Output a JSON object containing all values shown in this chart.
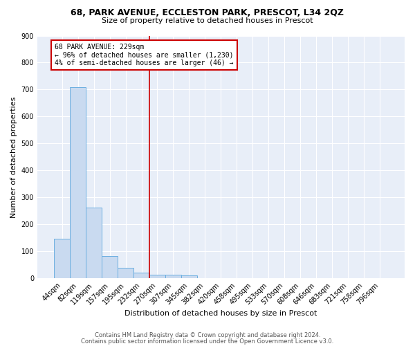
{
  "title_line1": "68, PARK AVENUE, ECCLESTON PARK, PRESCOT, L34 2QZ",
  "title_line2": "Size of property relative to detached houses in Prescot",
  "xlabel": "Distribution of detached houses by size in Prescot",
  "ylabel": "Number of detached properties",
  "bar_labels": [
    "44sqm",
    "82sqm",
    "119sqm",
    "157sqm",
    "195sqm",
    "232sqm",
    "270sqm",
    "307sqm",
    "345sqm",
    "382sqm",
    "420sqm",
    "458sqm",
    "495sqm",
    "533sqm",
    "570sqm",
    "608sqm",
    "646sqm",
    "683sqm",
    "721sqm",
    "758sqm",
    "796sqm"
  ],
  "bar_values": [
    148,
    710,
    263,
    83,
    38,
    22,
    12,
    12,
    11,
    0,
    0,
    0,
    0,
    0,
    0,
    0,
    0,
    0,
    0,
    0,
    0
  ],
  "bar_color": "#c9daf0",
  "bar_edge_color": "#6aaee0",
  "vline_x": 5.5,
  "vline_color": "#cc0000",
  "annotation_text": "68 PARK AVENUE: 229sqm\n← 96% of detached houses are smaller (1,230)\n4% of semi-detached houses are larger (46) →",
  "annotation_box_color": "#cc0000",
  "annotation_bg": "#ffffff",
  "ylim": [
    0,
    900
  ],
  "yticks": [
    0,
    100,
    200,
    300,
    400,
    500,
    600,
    700,
    800,
    900
  ],
  "footer_line1": "Contains HM Land Registry data © Crown copyright and database right 2024.",
  "footer_line2": "Contains public sector information licensed under the Open Government Licence v3.0.",
  "plot_bg_color": "#e8eef8",
  "fig_bg_color": "#ffffff",
  "title_fontsize": 9,
  "subtitle_fontsize": 8,
  "annotation_fontsize": 7,
  "ylabel_fontsize": 8,
  "xlabel_fontsize": 8,
  "tick_fontsize": 7,
  "footer_fontsize": 6
}
